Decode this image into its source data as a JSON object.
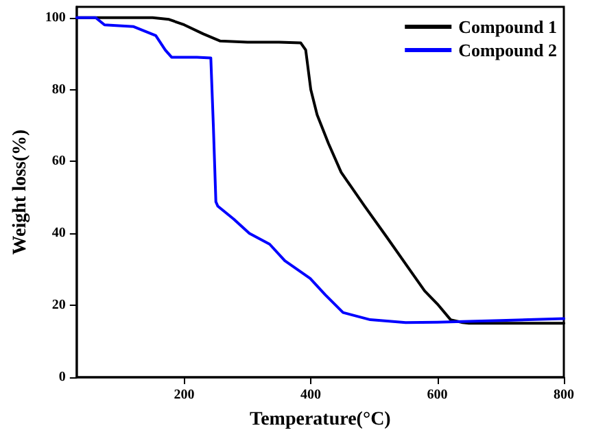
{
  "chart_data": {
    "type": "line",
    "xlabel": "Temperature(°C)",
    "ylabel": "Weight loss(%)",
    "xlim": [
      30,
      800
    ],
    "xticks": [
      200,
      400,
      600,
      800
    ],
    "ylim": [
      0,
      103
    ],
    "yticks": [
      0,
      20,
      40,
      60,
      80,
      100
    ],
    "grid": false,
    "legend": "top right",
    "marker": "none",
    "line_style": "solid",
    "series": [
      {
        "name": "Compound 1",
        "color": "#000000",
        "x": [
          30,
          100,
          150,
          176,
          200,
          230,
          257,
          300,
          350,
          384,
          392,
          400,
          410,
          428,
          448,
          485,
          520,
          554,
          580,
          600,
          621,
          640,
          650,
          700,
          800
        ],
        "values": [
          100,
          100,
          100,
          99.5,
          98,
          95.5,
          93.5,
          93.2,
          93.2,
          93,
          91,
          80,
          73,
          65,
          57,
          47.6,
          39,
          30.5,
          24,
          20.4,
          16,
          15.2,
          15,
          15,
          15
        ]
      },
      {
        "name": "Compound 2",
        "color": "#0000ff",
        "x": [
          30,
          60,
          74,
          120,
          155,
          170,
          180,
          220,
          242,
          246,
          250,
          253,
          278,
          303,
          335,
          359,
          399,
          423,
          451,
          494,
          550,
          600,
          700,
          800
        ],
        "values": [
          100,
          100,
          98,
          97.5,
          95,
          91,
          89,
          89,
          88.8,
          70,
          48.8,
          47.6,
          44,
          40,
          37,
          32.4,
          27.5,
          22.9,
          18,
          16,
          15.2,
          15.3,
          15.8,
          16.3
        ]
      }
    ]
  }
}
